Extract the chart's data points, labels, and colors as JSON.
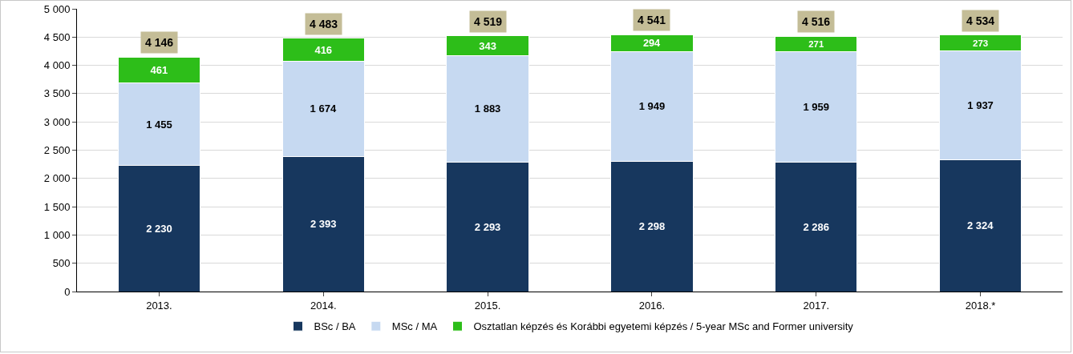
{
  "chart_data": {
    "type": "bar",
    "stacked": true,
    "categories": [
      "2013.",
      "2014.",
      "2015.",
      "2016.",
      "2017.",
      "2018.*"
    ],
    "series": [
      {
        "name": "BSc / BA",
        "color": "#17375e",
        "values": [
          2230,
          2393,
          2293,
          2298,
          2286,
          2324
        ],
        "value_labels": [
          "2 230",
          "2 393",
          "2 293",
          "2 298",
          "2 286",
          "2 324"
        ]
      },
      {
        "name": "MSc / MA",
        "color": "#c6d9f1",
        "values": [
          1455,
          1674,
          1883,
          1949,
          1959,
          1937
        ],
        "value_labels": [
          "1 455",
          "1 674",
          "1 883",
          "1 949",
          "1 959",
          "1 937"
        ]
      },
      {
        "name": "Osztatlan képzés és Korábbi egyetemi képzés / 5-year MSc and Former university",
        "color": "#2dbe19",
        "values": [
          461,
          416,
          343,
          294,
          271,
          273
        ],
        "value_labels": [
          "461",
          "416",
          "343",
          "294",
          "271",
          "273"
        ]
      }
    ],
    "totals": [
      "4 146",
      "4 483",
      "4 519",
      "4 541",
      "4 516",
      "4 534"
    ],
    "ylim": [
      0,
      5000
    ],
    "yticks": [
      0,
      500,
      {
        "value": 1000,
        "label": "1 000"
      },
      {
        "value": 1500,
        "label": "1 500"
      },
      {
        "value": 2000,
        "label": "2 000"
      },
      {
        "value": 2500,
        "label": "2 500"
      },
      {
        "value": 3000,
        "label": "3 000"
      },
      {
        "value": 3500,
        "label": "3 500"
      },
      {
        "value": 4000,
        "label": "4 000"
      },
      {
        "value": 4500,
        "label": "4 500"
      },
      {
        "value": 5000,
        "label": "5 000"
      }
    ],
    "grid": "y",
    "legend": "bottom"
  }
}
